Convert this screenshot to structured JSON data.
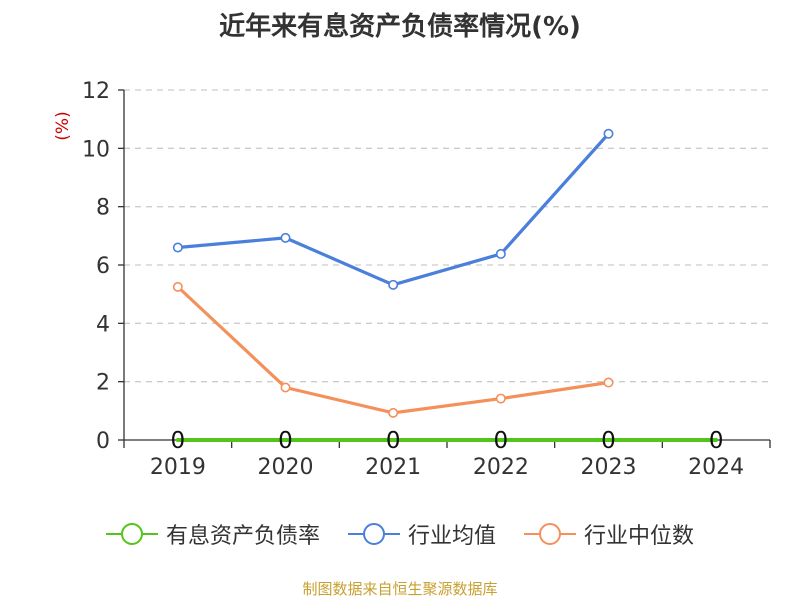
{
  "title": "近年来有息资产负债率情况(%)",
  "source": "制图数据来自恒生聚源数据库",
  "colors": {
    "title": "#333333",
    "axis": "#333333",
    "grid": "#cccccc",
    "unit": "#cc0000",
    "source": "#c8a030"
  },
  "chart_data": {
    "type": "line",
    "ylabel": "(%)",
    "ylim": [
      0,
      12
    ],
    "yticks": [
      "0",
      "2",
      "4",
      "6",
      "8",
      "10",
      "12"
    ],
    "categories": [
      "2019",
      "2020",
      "2021",
      "2022",
      "2023",
      "2024"
    ],
    "grid": true,
    "legend_position": "bottom",
    "series": [
      {
        "name": "有息资产负债率",
        "color": "#52c41a",
        "values": [
          0,
          0,
          0,
          0,
          0,
          0
        ],
        "labels": [
          "0",
          "0",
          "0",
          "0",
          "0",
          "0"
        ]
      },
      {
        "name": "行业均值",
        "color": "#4a7fdb",
        "values": [
          6.6,
          6.93,
          5.32,
          6.38,
          10.5,
          null
        ]
      },
      {
        "name": "行业中位数",
        "color": "#f4905a",
        "values": [
          5.25,
          1.8,
          0.93,
          1.42,
          1.97,
          null
        ]
      }
    ]
  }
}
